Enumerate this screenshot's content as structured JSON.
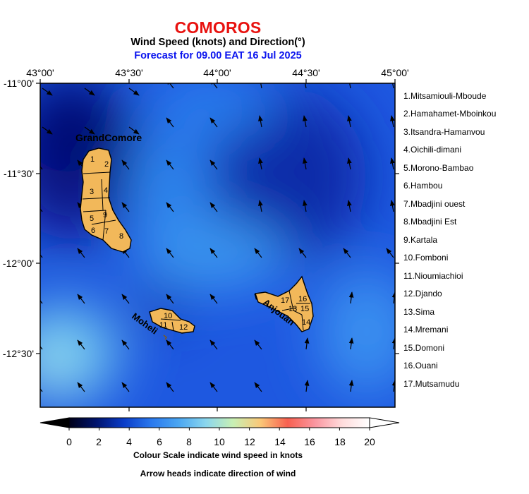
{
  "title": "COMOROS",
  "subtitle": "Wind Speed (knots) and Direction(°)",
  "forecast_line": "Forecast for  09.00 EAT 16 Jul 2025",
  "axes": {
    "lon_ticks": [
      "43°00'",
      "43°30'",
      "44°00'",
      "44°30'",
      "45°00'"
    ],
    "lat_ticks": [
      "-11°00'",
      "-11°30'",
      "-12°00'",
      "-12°30'"
    ]
  },
  "islands": {
    "grand_comore": "GrandComore",
    "moheli": "Moheli",
    "anjouan": "Anjouan"
  },
  "region_numbers": {
    "r1": "1",
    "r2": "2",
    "r3": "3",
    "r4": "4",
    "r5": "5",
    "r6": "6",
    "r7": "7",
    "r8": "8",
    "r9": "9",
    "r10": "10",
    "r11": "11",
    "r12": "12",
    "r13": "13",
    "r14": "14",
    "r15": "15",
    "r16": "16",
    "r17": "17"
  },
  "regions": [
    "1.Mitsamiouli-Mboude",
    "2.Hamahamet-Mboinkou",
    "3.Itsandra-Hamanvou",
    "4.Oichili-dimani",
    "5.Morono-Bambao",
    "6.Hambou",
    "7.Mbadjini ouest",
    "8.Mbadjini Est",
    "9.Kartala",
    "10.Fomboni",
    "11.Nioumiachioi",
    "12.Djando",
    "13.Sima",
    "14.Mremani",
    "15.Domoni",
    "16.Ouani",
    "17.Mutsamudu"
  ],
  "colorbar": {
    "ticks": [
      "0",
      "2",
      "4",
      "6",
      "8",
      "10",
      "12",
      "14",
      "16",
      "18",
      "20"
    ],
    "colors": [
      "#000018",
      "#00146e",
      "#0a3cc8",
      "#2a78ee",
      "#4aa6f2",
      "#8ad6ee",
      "#c8f0b4",
      "#fac878",
      "#f86050",
      "#fa96a0",
      "#ffdcdc",
      "#ffffff"
    ]
  },
  "notes": {
    "line1": "Colour Scale indicate wind speed in knots",
    "line2": "Arrow heads indicate direction of wind"
  }
}
